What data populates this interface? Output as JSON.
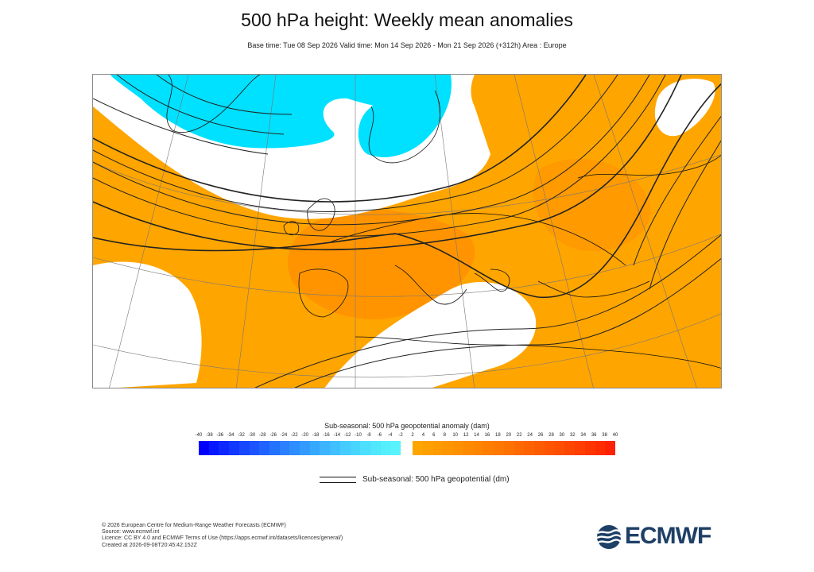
{
  "header": {
    "title": "500 hPa height: Weekly mean anomalies",
    "subtitle": "Base time: Tue 08 Sep 2026 Valid time: Mon 14 Sep 2026 - Mon 21 Sep 2026 (+312h) Area : Europe"
  },
  "map": {
    "area": "Europe",
    "colors": {
      "ocean_orange": "#ffa500",
      "deep_orange": "#ff8c00",
      "cyan": "#00e0ff",
      "white": "#ffffff",
      "coast": "#111111"
    }
  },
  "colorbar": {
    "title": "Sub-seasonal: 500 hPa geopotential anomaly (dam)",
    "negative_labels": [
      "-40",
      "-38",
      "-36",
      "-34",
      "-32",
      "-30",
      "-28",
      "-26",
      "-24",
      "-22",
      "-20",
      "-18",
      "-16",
      "-14",
      "-12",
      "-10",
      "-8",
      "-6",
      "-4",
      "-2"
    ],
    "positive_labels": [
      "2",
      "4",
      "6",
      "8",
      "10",
      "12",
      "14",
      "16",
      "18",
      "20",
      "22",
      "24",
      "26",
      "28",
      "30",
      "32",
      "34",
      "36",
      "38",
      "40"
    ],
    "negative_colors": [
      "#0000ff",
      "#0717ff",
      "#0d27ff",
      "#1237ff",
      "#1747ff",
      "#1c55ff",
      "#2163ff",
      "#2572ff",
      "#2a80ff",
      "#2e8dff",
      "#339bff",
      "#37a8ff",
      "#3cb4ff",
      "#40c0ff",
      "#44ccff",
      "#48d6ff",
      "#4cdfff",
      "#50e7ff",
      "#54eeff",
      "#58f3ff"
    ],
    "positive_colors": [
      "#ffa500",
      "#ffa000",
      "#ff9b00",
      "#ff9600",
      "#ff9000",
      "#ff8a00",
      "#ff8400",
      "#ff7e00",
      "#ff7800",
      "#ff7100",
      "#ff6a00",
      "#ff6300",
      "#ff5c00",
      "#ff5500",
      "#ff4e00",
      "#ff4600",
      "#ff3e00",
      "#ff3500",
      "#ff2c00",
      "#ff2200"
    ]
  },
  "contour_legend": {
    "label": "Sub-seasonal: 500 hPa geopotential (dm)"
  },
  "footer": {
    "lines": [
      "© 2026 European Centre for Medium-Range Weather Forecasts (ECMWF)",
      "Source: www.ecmwf.int",
      "Licence: CC BY 4.0 and ECMWF Terms of Use (https://apps.ecmwf.int/datasets/licences/general/)",
      "Created at 2026-09-08T20:45:42.152Z"
    ]
  },
  "logo": {
    "text": "ECMWF",
    "color": "#1e3f66"
  }
}
